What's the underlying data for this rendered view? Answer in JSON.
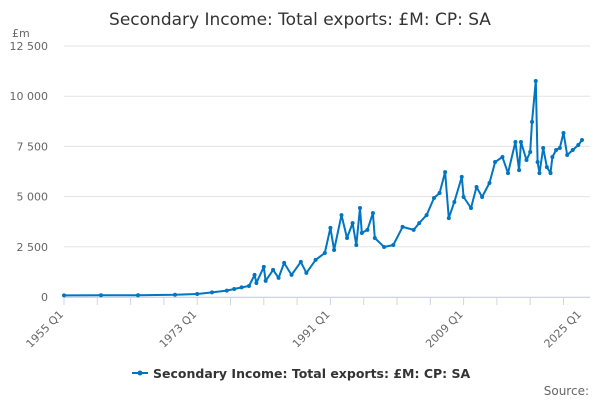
{
  "chart_data": {
    "type": "line",
    "title": "Secondary Income: Total exports: £M: CP: SA",
    "ylabel": "£m",
    "xlabel": "",
    "ylim": [
      0,
      12500
    ],
    "yticks": [
      0,
      2500,
      5000,
      7500,
      10000,
      12500
    ],
    "ytick_labels": [
      "0",
      "2 500",
      "5 000",
      "7 500",
      "10 000",
      "12 500"
    ],
    "xlim": [
      "1955 Q1",
      "2025 Q1"
    ],
    "xtick_labels": [
      "1955 Q1",
      "1973 Q1",
      "1991 Q1",
      "2009 Q1",
      "2025 Q1"
    ],
    "grid": "horizontal",
    "legend_position": "bottom",
    "source_label": "Source:",
    "color": "#0075c2",
    "series": [
      {
        "name": "Secondary Income: Total exports: £M: CP: SA",
        "points": [
          [
            "1955 Q1",
            80
          ],
          [
            "1960 Q1",
            85
          ],
          [
            "1965 Q1",
            90
          ],
          [
            "1970 Q1",
            110
          ],
          [
            "1973 Q1",
            150
          ],
          [
            "1975 Q1",
            230
          ],
          [
            "1977 Q1",
            320
          ],
          [
            "1978 Q1",
            400
          ],
          [
            "1979 Q1",
            480
          ],
          [
            "1980 Q1",
            550
          ],
          [
            "1980 Q4",
            1100
          ],
          [
            "1981 Q1",
            700
          ],
          [
            "1982 Q1",
            1500
          ],
          [
            "1982 Q2",
            800
          ],
          [
            "1983 Q2",
            1350
          ],
          [
            "1984 Q1",
            950
          ],
          [
            "1984 Q4",
            1700
          ],
          [
            "1985 Q4",
            1100
          ],
          [
            "1987 Q1",
            1750
          ],
          [
            "1987 Q4",
            1200
          ],
          [
            "1989 Q1",
            1850
          ],
          [
            "1990 Q2",
            2190
          ],
          [
            "1991 Q1",
            3440
          ],
          [
            "1991 Q3",
            2340
          ],
          [
            "1992 Q3",
            4080
          ],
          [
            "1993 Q2",
            2940
          ],
          [
            "1994 Q1",
            3680
          ],
          [
            "1994 Q3",
            2590
          ],
          [
            "1995 Q1",
            4430
          ],
          [
            "1995 Q2",
            3190
          ],
          [
            "1996 Q1",
            3340
          ],
          [
            "1996 Q4",
            4180
          ],
          [
            "1997 Q1",
            2940
          ],
          [
            "1998 Q2",
            2490
          ],
          [
            "1999 Q3",
            2590
          ],
          [
            "2000 Q4",
            3490
          ],
          [
            "2002 Q2",
            3340
          ],
          [
            "2003 Q1",
            3680
          ],
          [
            "2004 Q1",
            4080
          ],
          [
            "2005 Q1",
            4930
          ],
          [
            "2005 Q4",
            5180
          ],
          [
            "2006 Q3",
            6220
          ],
          [
            "2007 Q1",
            3930
          ],
          [
            "2007 Q4",
            4730
          ],
          [
            "2008 Q4",
            5980
          ],
          [
            "2009 Q1",
            4980
          ],
          [
            "2010 Q1",
            4430
          ],
          [
            "2010 Q4",
            5480
          ],
          [
            "2011 Q3",
            4980
          ],
          [
            "2012 Q3",
            5680
          ],
          [
            "2013 Q2",
            6720
          ],
          [
            "2014 Q2",
            6970
          ],
          [
            "2015 Q1",
            6170
          ],
          [
            "2016 Q1",
            7720
          ],
          [
            "2016 Q3",
            6320
          ],
          [
            "2016 Q4",
            7720
          ],
          [
            "2017 Q3",
            6820
          ],
          [
            "2018 Q1",
            7220
          ],
          [
            "2018 Q2",
            8720
          ],
          [
            "2018 Q4",
            10760
          ],
          [
            "2019 Q1",
            6720
          ],
          [
            "2019 Q2",
            6170
          ],
          [
            "2019 Q4",
            7420
          ],
          [
            "2020 Q2",
            6470
          ],
          [
            "2020 Q4",
            6170
          ],
          [
            "2021 Q1",
            6970
          ],
          [
            "2021 Q3",
            7320
          ],
          [
            "2022 Q1",
            7420
          ],
          [
            "2022 Q3",
            8170
          ],
          [
            "2023 Q1",
            7070
          ],
          [
            "2023 Q4",
            7320
          ],
          [
            "2024 Q3",
            7570
          ],
          [
            "2025 Q1",
            7820
          ]
        ]
      }
    ]
  }
}
